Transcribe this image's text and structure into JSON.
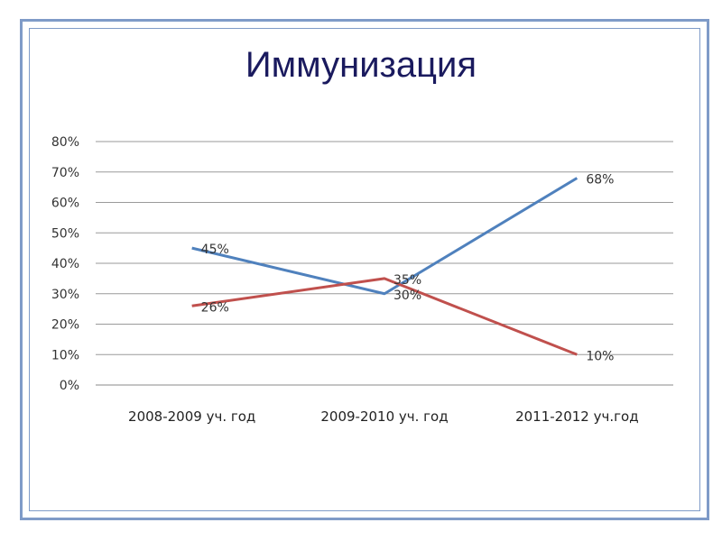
{
  "chart_data": {
    "type": "line",
    "title": "Иммунизация",
    "categories": [
      "2008-2009 уч. год",
      "2009-2010 уч. год",
      "2011-2012 уч.год"
    ],
    "ylim": [
      0,
      80
    ],
    "yticks": [
      "0%",
      "10%",
      "20%",
      "30%",
      "40%",
      "50%",
      "60%",
      "70%",
      "80%"
    ],
    "grid": true,
    "series": [
      {
        "values": [
          45,
          30,
          68
        ],
        "labels": [
          "45%",
          "30%",
          "68%"
        ],
        "color": "#4f81bd"
      },
      {
        "values": [
          26,
          35,
          10
        ],
        "labels": [
          "26%",
          "35%",
          "10%"
        ],
        "color": "#c0504d"
      }
    ]
  }
}
